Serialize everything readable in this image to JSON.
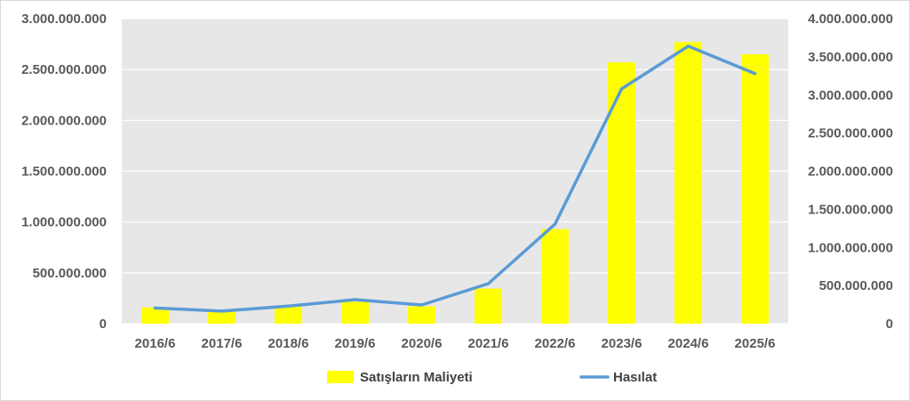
{
  "chart_data": {
    "type": "bar+line",
    "categories": [
      "2016/6",
      "2017/6",
      "2018/6",
      "2019/6",
      "2020/6",
      "2021/6",
      "2022/6",
      "2023/6",
      "2024/6",
      "2025/6"
    ],
    "series": [
      {
        "name": "Satışların Maliyeti",
        "type": "bar",
        "axis": "left",
        "color": "#FFFF00",
        "values": [
          160000000,
          125000000,
          165000000,
          215000000,
          170000000,
          345000000,
          930000000,
          2570000000,
          2770000000,
          2650000000
        ]
      },
      {
        "name": "Hasılat",
        "type": "line",
        "axis": "right",
        "color": "#5B9BD5",
        "values": [
          205000000,
          165000000,
          230000000,
          315000000,
          245000000,
          525000000,
          1305000000,
          3080000000,
          3640000000,
          3280000000
        ]
      }
    ],
    "y_left": {
      "lim": [
        0,
        3000000000
      ],
      "ticks": [
        "0",
        "500.000.000",
        "1.000.000.000",
        "1.500.000.000",
        "2.000.000.000",
        "2.500.000.000",
        "3.000.000.000"
      ]
    },
    "y_right": {
      "lim": [
        0,
        4000000000
      ],
      "ticks": [
        "0",
        "500.000.000",
        "1.000.000.000",
        "1.500.000.000",
        "2.000.000.000",
        "2.500.000.000",
        "3.000.000.000",
        "3.500.000.000",
        "4.000.000.000"
      ]
    },
    "grid": true,
    "plot_background": "#E7E7E7",
    "legend": "bottom"
  }
}
